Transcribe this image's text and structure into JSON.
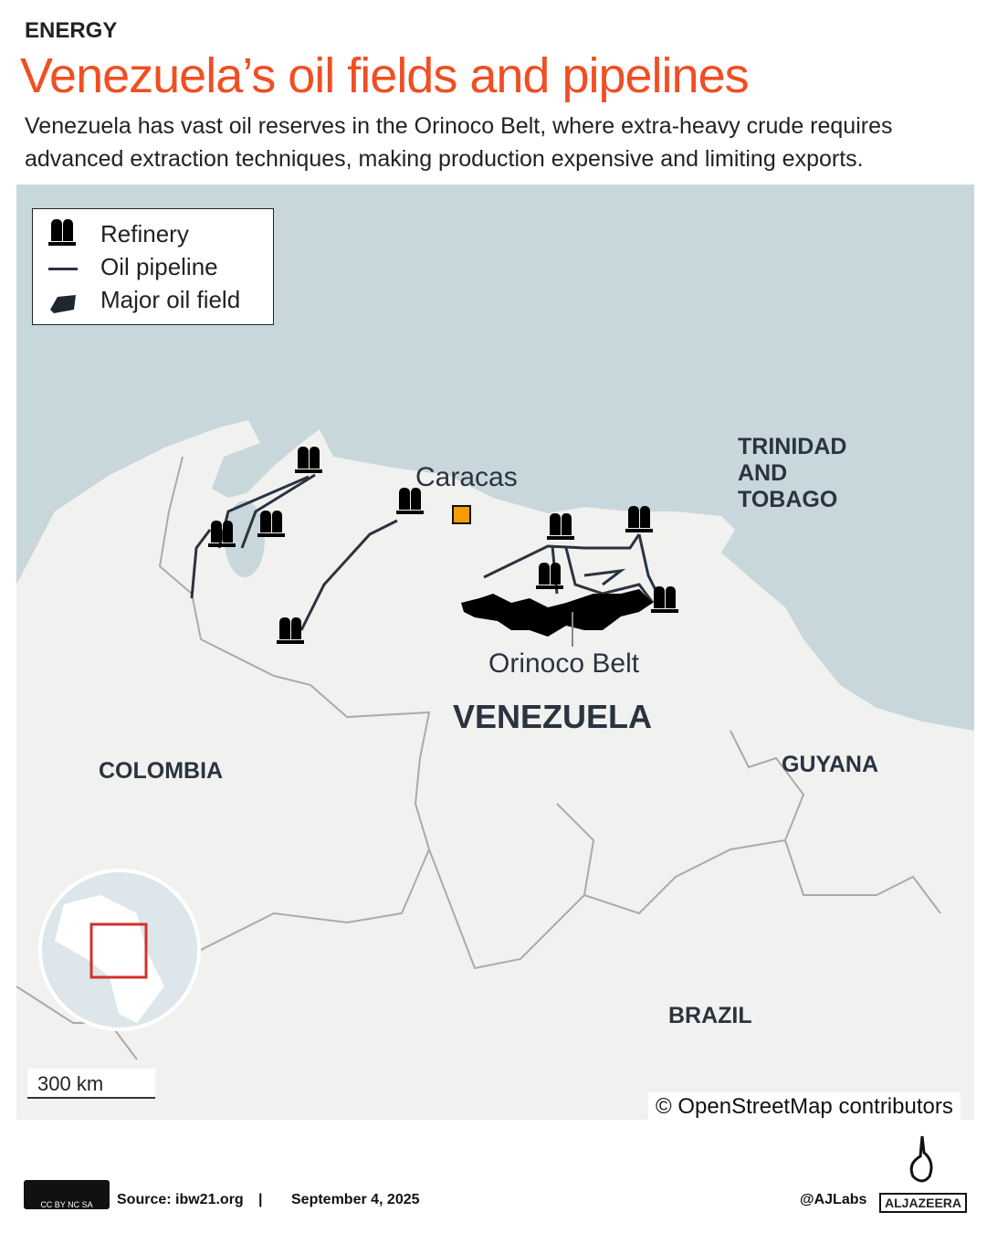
{
  "header": {
    "kicker": "ENERGY",
    "title": "Venezuela’s oil fields and pipelines",
    "subtitle": "Venezuela has vast oil reserves in the Orinoco Belt, where extra-heavy crude requires advanced extraction techniques, making production expensive and limiting exports."
  },
  "legend": {
    "items": [
      {
        "icon": "refinery-icon",
        "label": "Refinery"
      },
      {
        "icon": "pipeline-line-icon",
        "label": "Oil pipeline"
      },
      {
        "icon": "oil-field-icon",
        "label": "Major oil field"
      }
    ]
  },
  "map": {
    "labels": {
      "caracas": "Caracas",
      "orinoco": "Orinoco Belt",
      "venezuela": "VENEZUELA",
      "colombia": "COLOMBIA",
      "guyana": "GUYANA",
      "brazil": "BRAZIL",
      "trinidad": "TRINIDAD AND TOBAGO",
      "trinidad_l1": "TRINIDAD",
      "trinidad_l2": "AND",
      "trinidad_l3": "TOBAGO"
    },
    "scale": "300 km",
    "attribution": "© OpenStreetMap contributors",
    "colors": {
      "sea": "#c8d7dc",
      "land": "#f1f1ef",
      "capital": "#f59c00",
      "pipeline": "#2b3340",
      "field": "#000000",
      "globe_box": "#d0312d"
    }
  },
  "footer": {
    "license": "CC BY NC SA",
    "source": "Source: ibw21.org",
    "separator": "|",
    "date": "September 4, 2025",
    "handle": "@AJLabs",
    "brand": "ALJAZEERA"
  }
}
